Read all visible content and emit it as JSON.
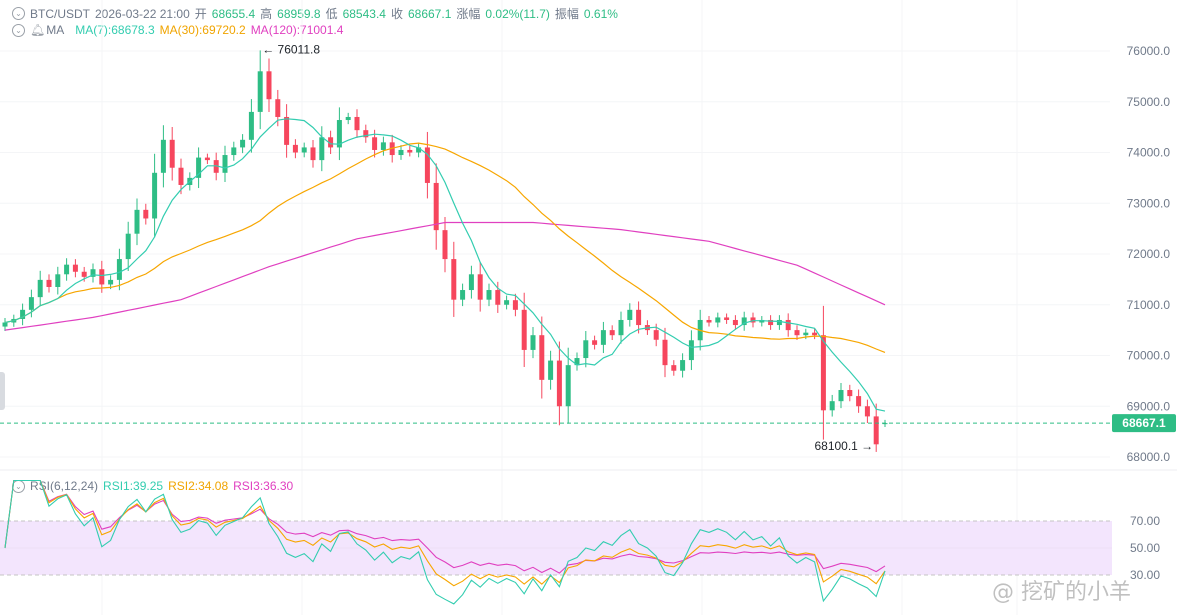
{
  "header": {
    "symbol": "BTC/USDT",
    "datetime": "2026-03-22 21:00",
    "open_label": "开",
    "open": "68655.4",
    "high_label": "高",
    "high": "68959.8",
    "low_label": "低",
    "low": "68543.4",
    "close_label": "收",
    "close": "68667.1",
    "change_label": "涨幅",
    "change": "0.02%(11.7)",
    "amp_label": "振幅",
    "amp": "0.61%"
  },
  "ma_legend": {
    "label": "MA",
    "ma7": "MA(7):68678.3",
    "ma30": "MA(30):69720.2",
    "ma120": "MA(120):71001.4"
  },
  "rsi_legend": {
    "label": "RSI(6,12,24)",
    "rsi1": "RSI1:39.25",
    "rsi2": "RSI2:34.08",
    "rsi3": "RSI3:36.30"
  },
  "watermark": "@ 挖矿的小羊",
  "colors": {
    "up": "#2ebd85",
    "down": "#f6465d",
    "ma7": "#33cdb0",
    "ma30": "#f7a600",
    "ma120": "#e040c0",
    "rsi_band": "#f3e5fd",
    "last_price": "#2ebd85"
  },
  "chart_data": [
    {
      "type": "candlestick",
      "title": "",
      "ylim": [
        67800,
        76600
      ],
      "y_ticks": [
        "76000.0",
        "75000.0",
        "74000.0",
        "73000.0",
        "72000.0",
        "71000.0",
        "70000.0",
        "69000.0",
        "68000.0"
      ],
      "closes": [
        70650,
        70720,
        70900,
        71150,
        71490,
        71350,
        71600,
        71790,
        71650,
        71550,
        71700,
        71400,
        71490,
        71900,
        72400,
        72870,
        72700,
        73600,
        74250,
        73700,
        73360,
        73500,
        73900,
        73850,
        73600,
        73950,
        74100,
        74250,
        74800,
        75600,
        75050,
        74700,
        74150,
        74000,
        74100,
        73850,
        74300,
        74100,
        74640,
        74700,
        74440,
        74300,
        74050,
        74200,
        73950,
        74050,
        74000,
        74100,
        73400,
        72470,
        71900,
        71100,
        71290,
        71600,
        71100,
        71290,
        71000,
        71090,
        70900,
        70110,
        70400,
        69520,
        69900,
        69000,
        69810,
        69950,
        70300,
        70210,
        70500,
        70400,
        70700,
        70900,
        70600,
        70500,
        70310,
        69810,
        69700,
        69910,
        70300,
        70700,
        70650,
        70750,
        70700,
        70600,
        70750,
        70650,
        70700,
        70600,
        70700,
        70500,
        70400,
        70450,
        70400,
        68920,
        69100,
        69320,
        69200,
        69000,
        68800,
        68250,
        68667.1
      ],
      "last_open": 68655.4,
      "ma120": [
        70500,
        70750,
        71100,
        71750,
        72300,
        72620,
        72620,
        72480,
        72250,
        71780,
        71000
      ],
      "last_price": "68667.1",
      "max_annotation": "76011.8",
      "max_value": 76011.8,
      "min_annotation": "68100.1",
      "min_value": 68100.1
    },
    {
      "type": "line",
      "title": "",
      "ylim": [
        5,
        75
      ],
      "y_ticks": [
        "70.00",
        "50.00",
        "30.00"
      ],
      "band": [
        30,
        70
      ],
      "series": [
        {
          "name": "RSI1",
          "period": 6
        },
        {
          "name": "RSI2",
          "period": 12
        },
        {
          "name": "RSI3",
          "period": 24
        }
      ]
    }
  ]
}
